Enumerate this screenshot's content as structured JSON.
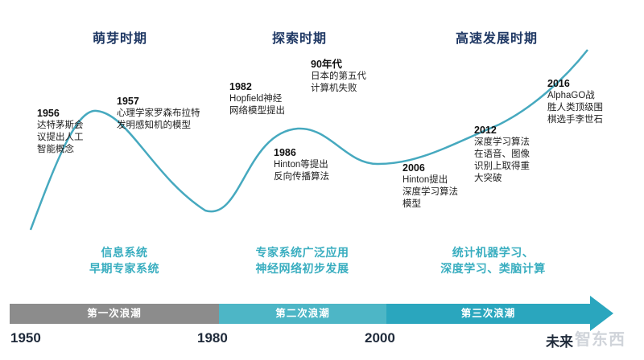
{
  "periods": [
    {
      "title": "萌芽时期"
    },
    {
      "title": "探索时期"
    },
    {
      "title": "高速发展时期"
    }
  ],
  "events": [
    {
      "year": "1956",
      "desc": "达特茅斯会\n议提出人工\n智能概念"
    },
    {
      "year": "1957",
      "desc": "心理学家罗森布拉特\n发明感知机的模型"
    },
    {
      "year": "1982",
      "desc": "Hopfield神经\n网络模型提出"
    },
    {
      "year": "90年代",
      "desc": "日本的第五代\n计算机失败"
    },
    {
      "year": "1986",
      "desc": "Hinton等提出\n反向传播算法"
    },
    {
      "year": "2006",
      "desc": "Hinton提出\n深度学习算法\n模型"
    },
    {
      "year": "2012",
      "desc": "深度学习算法\n在语音、图像\n识别上取得重\n大突破"
    },
    {
      "year": "2016",
      "desc": "AlphaGO战\n胜人类顶级围\n棋选手李世石"
    }
  ],
  "categories": [
    {
      "text": "信息系统\n早期专家系统"
    },
    {
      "text": "专家系统广泛应用\n神经网络初步发展"
    },
    {
      "text": "统计机器学习、\n深度学习、类脑计算"
    }
  ],
  "waves": [
    {
      "label": "第一次浪潮",
      "color": "#8c8c8c"
    },
    {
      "label": "第二次浪潮",
      "color": "#4db6c6"
    },
    {
      "label": "第三次浪潮",
      "color": "#2aa6be"
    }
  ],
  "axis": [
    "1950",
    "1980",
    "2000",
    "未来"
  ],
  "colors": {
    "curve": "#46a9bf",
    "title": "#1f3864",
    "category": "#3aaec0"
  },
  "watermark": {
    "text": "智东西"
  }
}
